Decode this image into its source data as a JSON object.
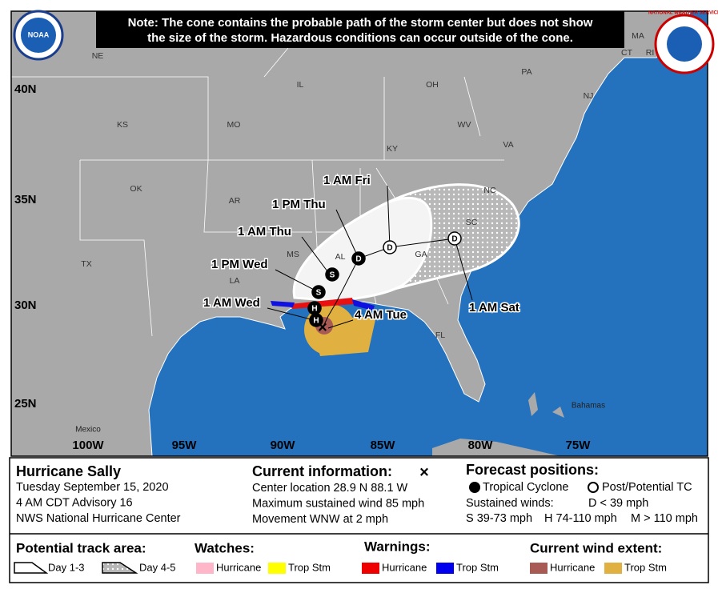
{
  "note": [
    "Note: The cone contains the probable path of the storm center but does not show",
    "the size of the storm. Hazardous conditions can occur outside of the cone."
  ],
  "logos": {
    "left": "NOAA",
    "right": "NATIONAL WEATHER SERVICE"
  },
  "map": {
    "regions": [
      "NE",
      "IL",
      "OH",
      "PA",
      "KS",
      "MO",
      "WV",
      "KY",
      "VA",
      "OK",
      "AR",
      "NC",
      "SC",
      "GA",
      "AL",
      "MS",
      "LA",
      "TX",
      "FL",
      "MA",
      "CT",
      "RI",
      "NJ",
      "Mexico",
      "Bahamas"
    ],
    "lat_labels": [
      "40N",
      "35N",
      "30N",
      "25N"
    ],
    "lon_labels": [
      "100W",
      "95W",
      "90W",
      "85W",
      "80W",
      "75W"
    ],
    "forecast_labels": [
      "4 AM Tue",
      "1 AM Wed",
      "1 PM Wed",
      "1 AM Thu",
      "1 PM Thu",
      "1 AM Fri",
      "1 AM Sat"
    ],
    "markers": [
      "H",
      "H",
      "S",
      "S",
      "D",
      "D",
      "D"
    ]
  },
  "storm": {
    "name": "Hurricane Sally",
    "date": "Tuesday September 15, 2020",
    "advisory": "4 AM CDT Advisory 16",
    "center": "NWS National Hurricane Center"
  },
  "current": {
    "title": "Current information:",
    "symbol": "×",
    "lines": [
      "Center location 28.9 N 88.1 W",
      "Maximum sustained wind 85 mph",
      "Movement WNW at 2 mph"
    ]
  },
  "forecast": {
    "title": "Forecast positions:",
    "tropical": "Tropical Cyclone",
    "post": "Post/Potential TC",
    "winds": "Sustained winds:",
    "d": "D < 39 mph",
    "s": "S 39-73 mph",
    "h": "H 74-110 mph",
    "m": "M > 110 mph"
  },
  "legend": {
    "track": {
      "title": "Potential track area:",
      "day13": "Day 1-3",
      "day45": "Day 4-5"
    },
    "watches": {
      "title": "Watches:",
      "hurricane": "Hurricane",
      "tropical": "Trop Stm"
    },
    "warnings": {
      "title": "Warnings:",
      "hurricane": "Hurricane",
      "tropical": "Trop Stm"
    },
    "wind": {
      "title": "Current wind extent:",
      "hurricane": "Hurricane",
      "tropical": "Trop Stm"
    }
  }
}
